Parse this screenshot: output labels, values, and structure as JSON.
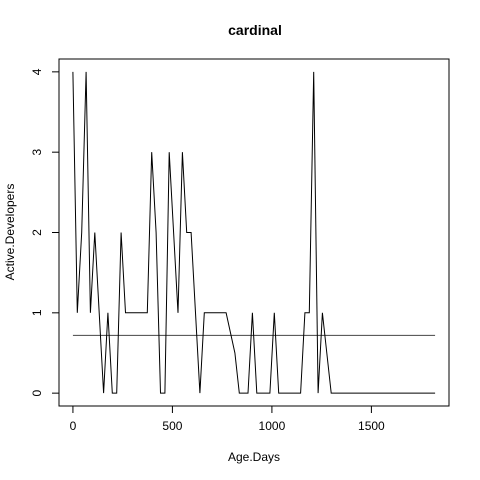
{
  "chart_data": {
    "type": "line",
    "title": "cardinal",
    "xlabel": "Age.Days",
    "ylabel": "Active.Developers",
    "xlim": [
      -70,
      1890
    ],
    "ylim": [
      -0.16,
      4.16
    ],
    "x_ticks": [
      0,
      500,
      1000,
      1500
    ],
    "y_ticks": [
      0,
      1,
      2,
      3,
      4
    ],
    "grid": false,
    "legend": "none",
    "line_color": "#000000",
    "reference_line": {
      "y": 0.72,
      "x_start": 0,
      "x_end": 1820,
      "color": "#444444"
    },
    "series": [
      {
        "x": [
          0,
          22,
          44,
          66,
          88,
          110,
          132,
          154,
          176,
          198,
          220,
          242,
          264,
          286,
          308,
          330,
          352,
          374,
          396,
          418,
          440,
          462,
          484,
          506,
          528,
          550,
          572,
          594,
          616,
          638,
          660,
          682,
          704,
          726,
          748,
          770,
          792,
          814,
          836,
          858,
          880,
          902,
          924,
          946,
          968,
          990,
          1012,
          1034,
          1056,
          1078,
          1100,
          1122,
          1144,
          1166,
          1188,
          1210,
          1232,
          1254,
          1276,
          1298,
          1320,
          1342,
          1364,
          1386,
          1408,
          1430,
          1452,
          1474,
          1496,
          1518,
          1540,
          1562,
          1584,
          1606,
          1628,
          1650,
          1672,
          1694,
          1716,
          1738,
          1760,
          1782,
          1804,
          1820
        ],
        "y": [
          4,
          1,
          2,
          4,
          1,
          2,
          1,
          0,
          1,
          0,
          0,
          2,
          1,
          1,
          1,
          1,
          1,
          1,
          3,
          2,
          0,
          0,
          3,
          2,
          1,
          3,
          2,
          2,
          1,
          0,
          1,
          1,
          1,
          1,
          1,
          1,
          0.75,
          0.5,
          0,
          0,
          0,
          1,
          0,
          0,
          0,
          0,
          1,
          0,
          0,
          0,
          0,
          0,
          0,
          1,
          1,
          4,
          0,
          1,
          0.5,
          0,
          0,
          0,
          0,
          0,
          0,
          0,
          0,
          0,
          0,
          0,
          0,
          0,
          0,
          0,
          0,
          0,
          0,
          0,
          0,
          0,
          0,
          0,
          0,
          0
        ]
      }
    ]
  }
}
